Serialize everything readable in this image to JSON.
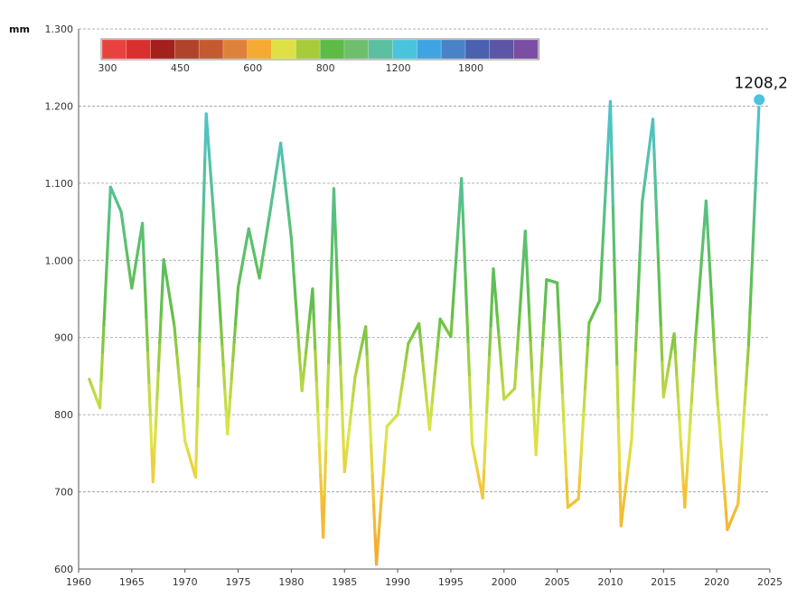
{
  "chart_data": {
    "type": "line",
    "unit_label": "mm",
    "x": [
      1961,
      1962,
      1963,
      1964,
      1965,
      1966,
      1967,
      1968,
      1969,
      1970,
      1971,
      1972,
      1973,
      1974,
      1975,
      1976,
      1977,
      1978,
      1979,
      1980,
      1981,
      1982,
      1983,
      1984,
      1985,
      1986,
      1987,
      1988,
      1989,
      1990,
      1991,
      1992,
      1993,
      1994,
      1995,
      1996,
      1997,
      1998,
      1999,
      2000,
      2001,
      2002,
      2003,
      2004,
      2005,
      2006,
      2007,
      2008,
      2009,
      2010,
      2011,
      2012,
      2013,
      2014,
      2015,
      2016,
      2017,
      2018,
      2019,
      2020,
      2021,
      2022,
      2023,
      2024
    ],
    "values": [
      846,
      809,
      1095,
      1063,
      964,
      1048,
      713,
      1001,
      915,
      766,
      719,
      1190,
      1003,
      775,
      965,
      1041,
      977,
      1063,
      1152,
      1029,
      831,
      963,
      641,
      1093,
      726,
      849,
      914,
      606,
      785,
      800,
      892,
      918,
      781,
      924,
      901,
      1106,
      763,
      692,
      989,
      820,
      834,
      1038,
      748,
      975,
      971,
      680,
      691,
      919,
      948,
      1206,
      656,
      768,
      1076,
      1183,
      823,
      905,
      680,
      897,
      1077,
      832,
      651,
      684,
      891,
      1208.2
    ],
    "xlim": [
      1960,
      2025
    ],
    "ylim": [
      600,
      1300
    ],
    "x_ticks": [
      "1960",
      "1965",
      "1970",
      "1975",
      "1980",
      "1985",
      "1990",
      "1995",
      "2000",
      "2005",
      "2010",
      "2015",
      "2020",
      "2025"
    ],
    "y_ticks": [
      "600",
      "700",
      "800",
      "900",
      "1.000",
      "1.100",
      "1.200",
      "1.300"
    ],
    "last_value_label": "1208,2",
    "grid": true,
    "color_scale": {
      "colors": [
        "#e8423f",
        "#d9302f",
        "#a3201c",
        "#b2432b",
        "#c55a31",
        "#de823b",
        "#f6a933",
        "#dee046",
        "#a8cb3c",
        "#5dbb46",
        "#6fbe6e",
        "#5ac0a1",
        "#4ac4dd",
        "#3fa4e2",
        "#4a82c7",
        "#4a61b0",
        "#5d55a5",
        "#7a4ea3"
      ],
      "labels": [
        "300",
        "450",
        "600",
        "800",
        "1200",
        "1800"
      ],
      "placement": "top-left"
    }
  }
}
